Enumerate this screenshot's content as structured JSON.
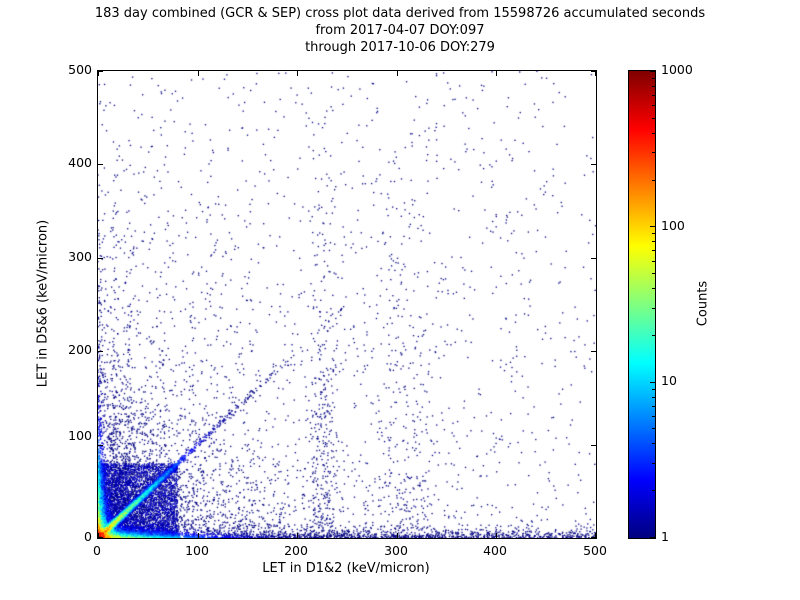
{
  "title": {
    "line1": "183 day combined (GCR & SEP) cross plot data derived from 15598726 accumulated seconds",
    "line2": "from 2017-04-07 DOY:097",
    "line3": "through 2017-10-06 DOY:279"
  },
  "axes": {
    "xlabel": "LET in D1&2 (keV/micron)",
    "ylabel": "LET in D5&6 (keV/micron)",
    "x_ticks": [
      "0",
      "100",
      "200",
      "300",
      "400",
      "500"
    ],
    "y_ticks": [
      "0",
      "100",
      "200",
      "300",
      "400",
      "500"
    ]
  },
  "colorbar": {
    "label": "Counts",
    "ticks": [
      "1000",
      "100",
      "10",
      "1"
    ],
    "scale": "log",
    "min": 1,
    "max": 1000,
    "colormap": "jet"
  },
  "chart_data": {
    "type": "heatmap",
    "title": "183 day combined (GCR & SEP) cross plot data derived from 15598726 accumulated seconds",
    "subtitle": [
      "from 2017-04-07 DOY:097",
      "through 2017-10-06 DOY:279"
    ],
    "xlabel": "LET in D1&2 (keV/micron)",
    "ylabel": "LET in D5&6 (keV/micron)",
    "xlim": [
      0,
      500
    ],
    "ylim": [
      0,
      500
    ],
    "duration_days": 183,
    "accumulated_seconds": 15598726,
    "colorbar": {
      "label": "Counts",
      "scale": "log",
      "min": 1,
      "max": 1000,
      "colormap": "jet"
    },
    "features": [
      "intense hot spot (~1000 counts, dark red to orange) at the origin below ~15 keV/micron in both detectors",
      "bright diagonal ridge y~x fading from yellow/green near origin to blue by ~80 keV/micron",
      "dense band along the x-axis (y<10) cyan/green out to ~120 keV/micron, sparse blue out to 500",
      "dense band along the y-axis (x<10) extending up to ~300 keV/micron",
      "sparse single-count (dark blue) scatter over the whole plane, thinning toward the upper right",
      "loose vertical point clusters near x~225 and x~300-320 reaching high y values"
    ],
    "render": {
      "seed": 1337,
      "density": {
        "coreAmp": 800,
        "coreScale": 4.5,
        "diagAmp": 150,
        "diagWidth": 10,
        "diagDecay": 40,
        "bandAmp": 120,
        "bandNarrow": 2.5,
        "bandLong": 30
      },
      "corePaint": {
        "extent": 80,
        "threshold": 1.3
      },
      "clusters": [
        {
          "kind": "expo2d",
          "n": 2600,
          "mx": 70,
          "my": 70
        },
        {
          "kind": "expo2d",
          "n": 450,
          "mx": 2.5,
          "my": 95
        },
        {
          "kind": "expo2d",
          "n": 450,
          "mx": 120,
          "my": 3
        },
        {
          "kind": "uniform",
          "n": 800,
          "xpow": 1.3,
          "ypow": 1.7
        },
        {
          "kind": "uniform",
          "n": 650,
          "xpow": 1.0,
          "ypow": 1.0
        },
        {
          "kind": "column",
          "n": 330,
          "x": 226,
          "sx": 9,
          "my": 150,
          "max": 470
        },
        {
          "kind": "column",
          "n": 270,
          "x": 307,
          "sx": 20,
          "my": 170,
          "max": 430
        },
        {
          "kind": "column",
          "n": 140,
          "x": 17,
          "sx": 2,
          "my": 115,
          "max": 350
        },
        {
          "kind": "column",
          "n": 130,
          "x": 29,
          "sx": 2.5,
          "my": 95,
          "max": 330
        },
        {
          "kind": "diag",
          "n": 900,
          "mt": 55,
          "jitter": 1.6
        },
        {
          "kind": "ray",
          "n": 110,
          "slope": 2.0,
          "mt": 20,
          "jitter": 0.9
        },
        {
          "kind": "ray",
          "n": 110,
          "slope": 2.9,
          "mt": 16,
          "jitter": 0.9
        },
        {
          "kind": "ray",
          "n": 110,
          "slope": 1.45,
          "mt": 24,
          "jitter": 0.9
        },
        {
          "kind": "ray",
          "n": 110,
          "slope": 0.62,
          "mt": 30,
          "jitter": 0.9
        },
        {
          "kind": "ray",
          "n": 110,
          "slope": 0.35,
          "mt": 36,
          "jitter": 0.9
        },
        {
          "kind": "band",
          "n": 1200,
          "xpow": 1.2,
          "my": 3.5,
          "max": 14
        }
      ]
    }
  }
}
